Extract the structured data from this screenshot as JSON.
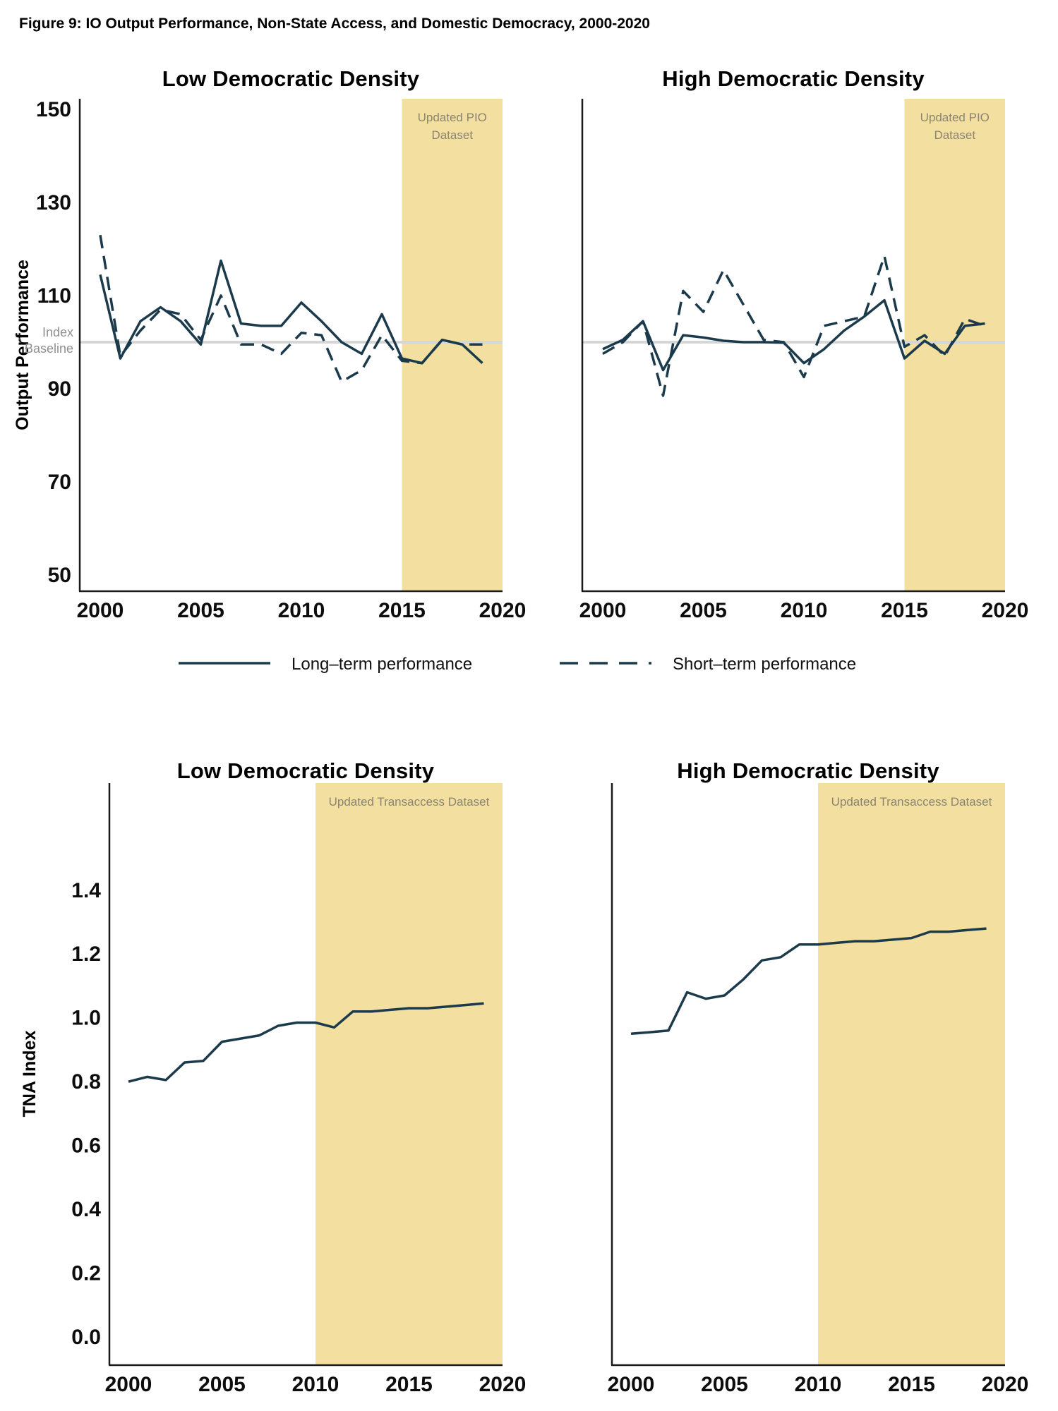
{
  "figure": {
    "caption": "Figure 9: IO Output Performance, Non-State Access, and Domestic Democracy, 2000-2020"
  },
  "colors": {
    "line": "#1b3a4b",
    "band": "#f3e0a0",
    "baseline": "#d6d6d6",
    "band_label": "#8a8472",
    "baseline_label": "#8f8f8f",
    "axis": "#1a1a1a"
  },
  "legend": {
    "items": [
      {
        "label": "Long–term performance",
        "style": "solid"
      },
      {
        "label": "Short–term performance",
        "style": "dashed"
      }
    ]
  },
  "chart_data": [
    {
      "id": "io_low",
      "type": "line",
      "title": "Low Democratic Density",
      "ylabel": "Output Performance",
      "xlabel": "",
      "x": [
        2000,
        2001,
        2002,
        2003,
        2004,
        2005,
        2006,
        2007,
        2008,
        2009,
        2010,
        2011,
        2012,
        2013,
        2014,
        2015,
        2016,
        2017,
        2018,
        2019
      ],
      "series": [
        {
          "name": "Long–term performance",
          "style": "solid",
          "values": [
            114.5,
            96.5,
            104.5,
            107.5,
            104.5,
            99.5,
            117.5,
            104,
            103.5,
            103.5,
            108.5,
            104.5,
            100,
            97.5,
            106,
            96.5,
            95.5,
            100.5,
            99.5,
            95.5
          ]
        },
        {
          "name": "Short–term performance",
          "style": "dashed",
          "values": [
            123,
            97,
            102.5,
            107,
            106,
            100.5,
            110,
            99.5,
            99.5,
            97.5,
            102,
            101.5,
            91.5,
            94,
            101.5,
            96,
            95.5,
            100.5,
            99.5,
            99.5
          ]
        }
      ],
      "yticks": {
        "values": [
          150,
          130,
          110,
          90,
          70,
          50
        ],
        "labels": [
          "150",
          "130",
          "110",
          "90",
          "70",
          "50"
        ]
      },
      "xticks": {
        "values": [
          2000,
          2005,
          2010,
          2015,
          2020
        ],
        "labels": [
          "2000",
          "2005",
          "2010",
          "2015",
          "2020"
        ]
      },
      "ylim": [
        47,
        152
      ],
      "xlim": [
        1999,
        2020
      ],
      "grid": false,
      "baseline": {
        "value": 100,
        "label_lines": [
          "Index",
          "Baseline"
        ]
      },
      "band": {
        "start_year": 2015,
        "end_year": 2020,
        "label_lines": [
          "Updated PIO",
          "Dataset"
        ]
      }
    },
    {
      "id": "io_high",
      "type": "line",
      "title": "High Democratic Density",
      "ylabel": "",
      "xlabel": "",
      "x": [
        2000,
        2001,
        2002,
        2003,
        2004,
        2005,
        2006,
        2007,
        2008,
        2009,
        2010,
        2011,
        2012,
        2013,
        2014,
        2015,
        2016,
        2017,
        2018,
        2019
      ],
      "series": [
        {
          "name": "Long–term performance",
          "style": "solid",
          "values": [
            98.5,
            100.5,
            104.5,
            94,
            101.5,
            101,
            100.3,
            100,
            100,
            99.9,
            95.5,
            98.5,
            102.5,
            105.5,
            109,
            96.5,
            100.3,
            97.5,
            103.5,
            104
          ]
        },
        {
          "name": "Short–term performance",
          "style": "dashed",
          "values": [
            97.5,
            100,
            104.5,
            88.5,
            111,
            106.5,
            115.5,
            108,
            100.5,
            100,
            92.5,
            103.5,
            104.5,
            105.5,
            118.5,
            99,
            101.5,
            97,
            105,
            103.5
          ]
        }
      ],
      "yticks": null,
      "xticks": {
        "values": [
          2000,
          2005,
          2010,
          2015,
          2020
        ],
        "labels": [
          "2000",
          "2005",
          "2010",
          "2015",
          "2020"
        ]
      },
      "ylim": [
        47,
        152
      ],
      "xlim": [
        1999,
        2020
      ],
      "grid": false,
      "baseline": {
        "value": 100,
        "label_lines": null
      },
      "band": {
        "start_year": 2015,
        "end_year": 2020,
        "label_lines": [
          "Updated PIO",
          "Dataset"
        ]
      }
    },
    {
      "id": "tna_low",
      "type": "line",
      "title": "Low Democratic Density",
      "ylabel": "TNA Index",
      "xlabel": "",
      "x": [
        2000,
        2001,
        2002,
        2003,
        2004,
        2005,
        2006,
        2007,
        2008,
        2009,
        2010,
        2011,
        2012,
        2013,
        2014,
        2015,
        2016,
        2017,
        2018,
        2019
      ],
      "series": [
        {
          "name": "TNA Index",
          "style": "solid",
          "values": [
            0.8,
            0.815,
            0.805,
            0.86,
            0.865,
            0.925,
            0.935,
            0.945,
            0.975,
            0.985,
            0.985,
            0.97,
            1.02,
            1.02,
            1.025,
            1.03,
            1.03,
            1.035,
            1.04,
            1.045
          ]
        }
      ],
      "yticks": {
        "values": [
          1.4,
          1.2,
          1.0,
          0.8,
          0.6,
          0.4,
          0.2,
          0.0
        ],
        "labels": [
          "1.4",
          "1.2",
          "1.0",
          "0.8",
          "0.6",
          "0.4",
          "0.2",
          "0.0"
        ]
      },
      "xticks": {
        "values": [
          2000,
          2005,
          2010,
          2015,
          2020
        ],
        "labels": [
          "2000",
          "2005",
          "2010",
          "2015",
          "2020"
        ]
      },
      "ylim": [
        -0.1,
        1.75
      ],
      "xlim": [
        1999,
        2020
      ],
      "grid": false,
      "baseline": null,
      "band": {
        "start_year": 2010,
        "end_year": 2020,
        "label_lines": [
          "Updated Transaccess Dataset"
        ]
      }
    },
    {
      "id": "tna_high",
      "type": "line",
      "title": "High Democratic Density",
      "ylabel": "",
      "xlabel": "",
      "x": [
        2000,
        2001,
        2002,
        2003,
        2004,
        2005,
        2006,
        2007,
        2008,
        2009,
        2010,
        2011,
        2012,
        2013,
        2014,
        2015,
        2016,
        2017,
        2018,
        2019
      ],
      "series": [
        {
          "name": "TNA Index",
          "style": "solid",
          "values": [
            0.95,
            0.955,
            0.96,
            1.08,
            1.06,
            1.07,
            1.12,
            1.18,
            1.19,
            1.23,
            1.23,
            1.235,
            1.24,
            1.24,
            1.245,
            1.25,
            1.27,
            1.27,
            1.275,
            1.28
          ]
        }
      ],
      "yticks": null,
      "xticks": {
        "values": [
          2000,
          2005,
          2010,
          2015,
          2020
        ],
        "labels": [
          "2000",
          "2005",
          "2010",
          "2015",
          "2020"
        ]
      },
      "ylim": [
        -0.1,
        1.75
      ],
      "xlim": [
        1999,
        2020
      ],
      "grid": false,
      "baseline": null,
      "band": {
        "start_year": 2010,
        "end_year": 2020,
        "label_lines": [
          "Updated Transaccess Dataset"
        ]
      }
    }
  ]
}
